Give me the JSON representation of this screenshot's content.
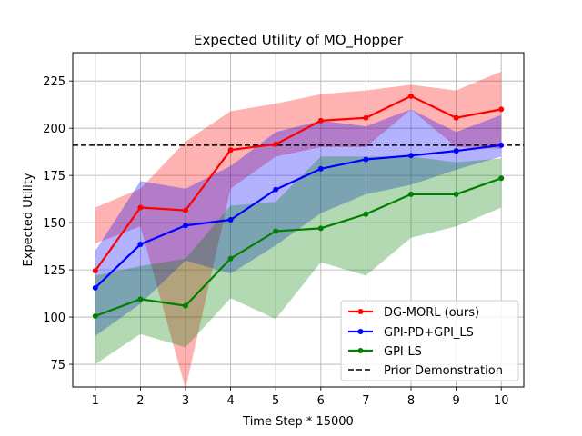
{
  "chart_data": {
    "type": "line",
    "title": "Expected Utility of MO_Hopper",
    "xlabel": "Time Step * 15000",
    "ylabel": "Expected Utility",
    "x": [
      1,
      2,
      3,
      4,
      5,
      6,
      7,
      8,
      9,
      10
    ],
    "xticks": [
      "1",
      "2",
      "3",
      "4",
      "5",
      "6",
      "7",
      "8",
      "9",
      "10"
    ],
    "xlim": [
      0.5,
      10.5
    ],
    "ylim": [
      63,
      240
    ],
    "yticks": [
      75,
      100,
      125,
      150,
      175,
      200,
      225
    ],
    "grid": true,
    "legend_position": "bottom-right",
    "series": [
      {
        "name": "DG-MORL (ours)",
        "color": "#ff0000",
        "values": [
          124.5,
          158,
          156.5,
          188.5,
          191.5,
          204,
          205.5,
          217,
          205.5,
          210
        ],
        "upper": [
          158,
          168,
          193,
          209,
          213,
          218,
          220,
          223,
          220,
          230
        ],
        "lower": [
          139,
          148,
          62,
          168,
          185,
          190,
          190,
          210,
          190,
          189
        ]
      },
      {
        "name": "GPI-PD+GPI_LS",
        "color": "#0000ff",
        "values": [
          115.5,
          138.5,
          148.5,
          151.5,
          167.5,
          178.5,
          183.5,
          185.5,
          188,
          191
        ],
        "upper": [
          135,
          172,
          168,
          180,
          198,
          204,
          201,
          210,
          198,
          207
        ],
        "lower": [
          90,
          107,
          130,
          123,
          138,
          155,
          165,
          170,
          178,
          185
        ]
      },
      {
        "name": "GPI-LS",
        "color": "#008000",
        "values": [
          100.5,
          109.5,
          106,
          131,
          145.5,
          147,
          154.5,
          165,
          165,
          173.5
        ],
        "upper": [
          122,
          127,
          131,
          159,
          161,
          185,
          185,
          185,
          182,
          184
        ],
        "lower": [
          75,
          91,
          84,
          110,
          99,
          129,
          122,
          142,
          148,
          158
        ]
      }
    ],
    "reference_line": {
      "name": "Prior Demonstration",
      "value": 191,
      "color": "#000000",
      "style": "dashed"
    }
  }
}
